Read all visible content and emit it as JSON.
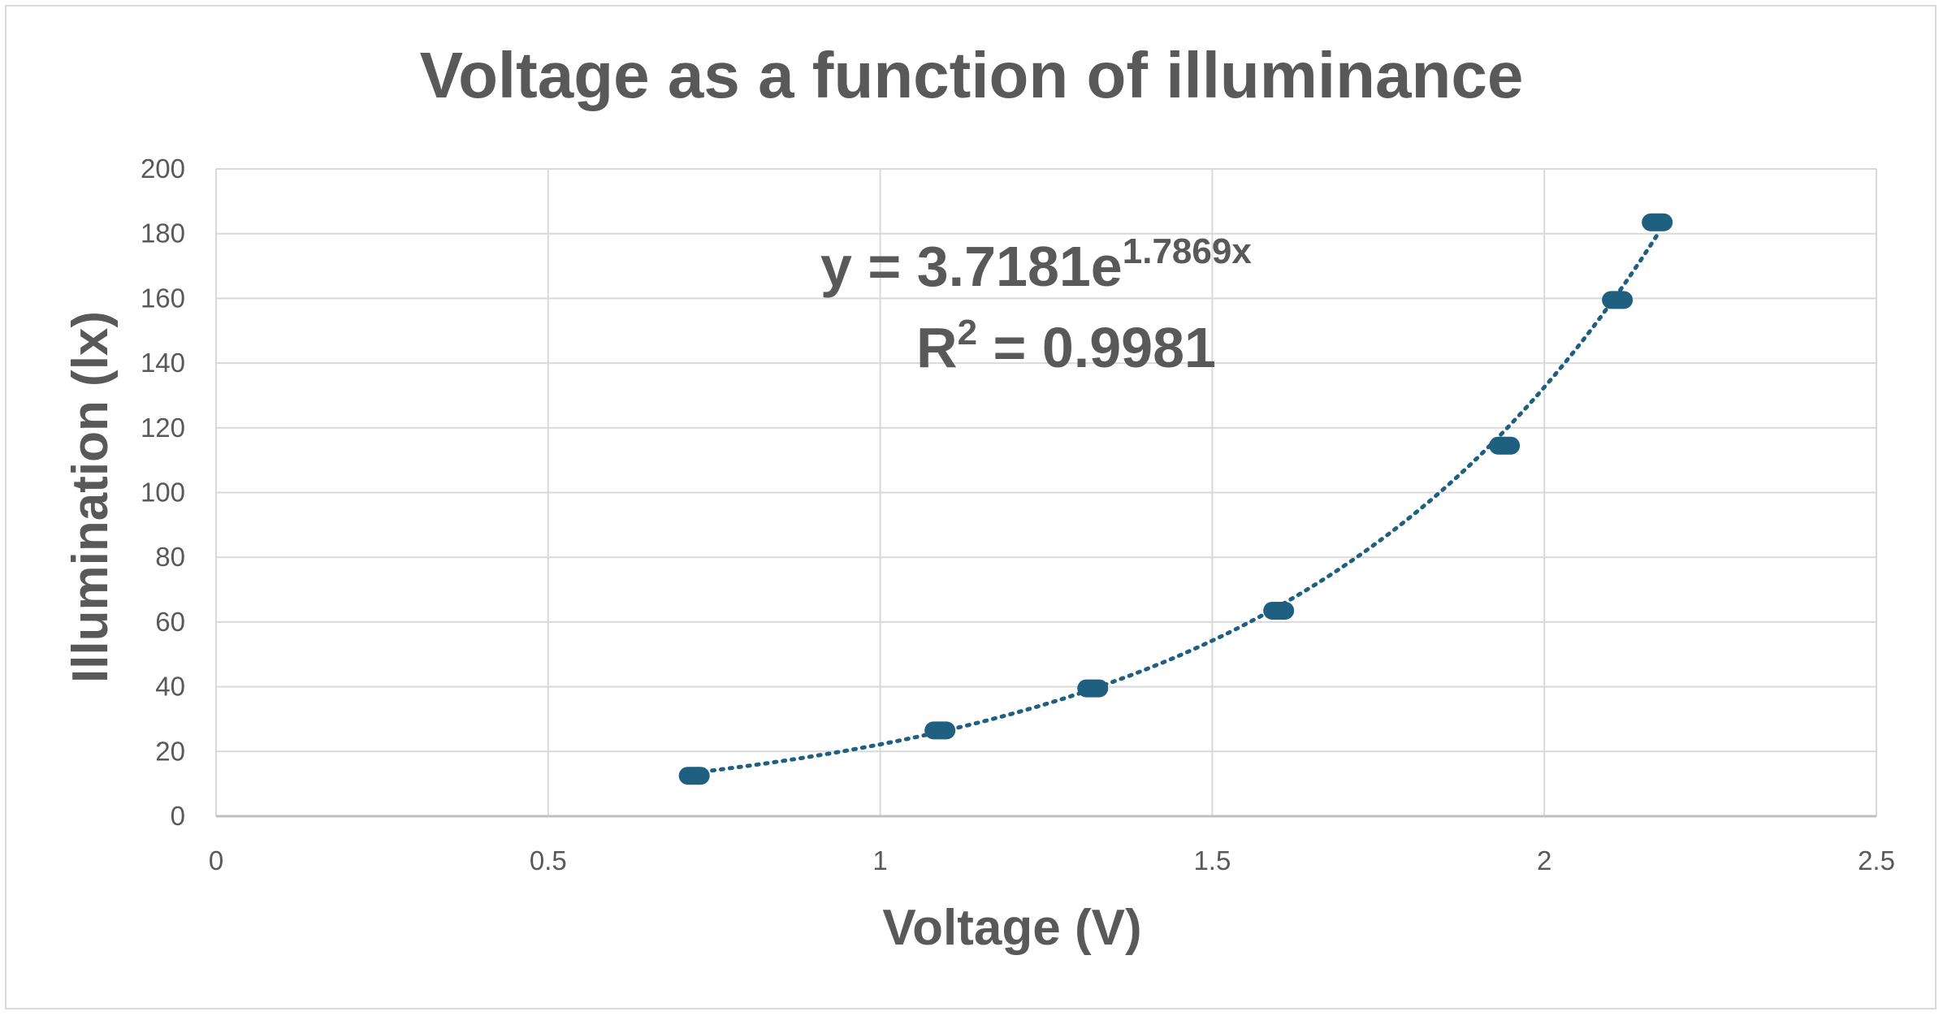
{
  "chart_data": {
    "type": "scatter",
    "title": "Voltage as a function of illuminance",
    "xlabel": "Voltage (V)",
    "ylabel": "Illumination (lx)",
    "xlim": [
      0,
      2.5
    ],
    "ylim": [
      0,
      200
    ],
    "x_ticks": [
      "0",
      "0.5",
      "1",
      "1.5",
      "2",
      "2.5"
    ],
    "y_ticks": [
      "0",
      "20",
      "40",
      "60",
      "80",
      "100",
      "120",
      "140",
      "160",
      "180",
      "200"
    ],
    "grid": true,
    "legend": "none",
    "marker_color": "#1f5f7f",
    "trendline": {
      "type": "exponential",
      "a": 3.7181,
      "b": 1.7869,
      "style": "dotted",
      "color": "#1f5f7f",
      "equation_main": "y = 3.7181e",
      "equation_exponent": "1.7869x",
      "r2_main": "R",
      "r2_exponent": "2",
      "r2_value": " = 0.9981"
    },
    "series": [
      {
        "points": [
          {
            "x": 0.72,
            "y": 12.5
          },
          {
            "x": 1.09,
            "y": 26.5
          },
          {
            "x": 1.32,
            "y": 39.5
          },
          {
            "x": 1.6,
            "y": 63.5
          },
          {
            "x": 1.94,
            "y": 114.5
          },
          {
            "x": 2.11,
            "y": 159.5
          },
          {
            "x": 2.17,
            "y": 183.5
          }
        ]
      }
    ]
  }
}
